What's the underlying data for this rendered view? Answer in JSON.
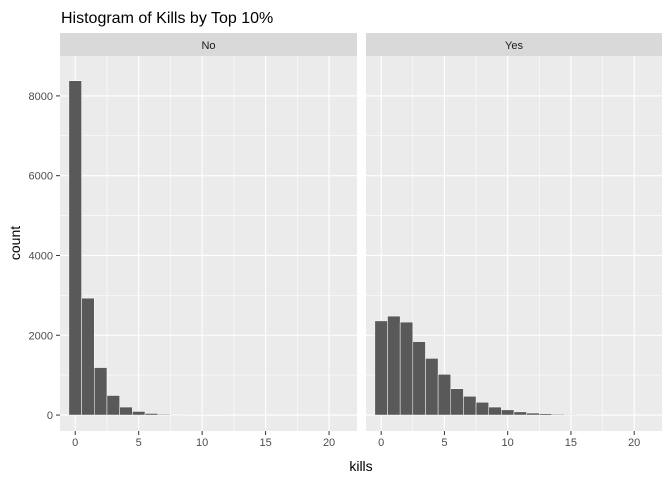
{
  "chart_data": {
    "type": "bar",
    "title": "Histogram of Kills by Top 10%",
    "xlabel": "kills",
    "ylabel": "count",
    "x_ticks": [
      0,
      5,
      10,
      15,
      20
    ],
    "y_ticks": [
      0,
      2000,
      4000,
      6000,
      8000
    ],
    "xlim": [
      -1.2,
      22.2
    ],
    "ylim": [
      -400,
      9000
    ],
    "grid": true,
    "bins": [
      0,
      1,
      2,
      3,
      4,
      5,
      6,
      7,
      8,
      9,
      10,
      11,
      12,
      13,
      14,
      15,
      16,
      17,
      18,
      19,
      20,
      21
    ],
    "panels": [
      {
        "name": "No",
        "values": [
          8380,
          2930,
          1190,
          490,
          200,
          90,
          40,
          20,
          10,
          5,
          3,
          2,
          0,
          0,
          0,
          0,
          0,
          0,
          0,
          0,
          0,
          0
        ]
      },
      {
        "name": "Yes",
        "values": [
          2360,
          2480,
          2330,
          1840,
          1420,
          1020,
          660,
          470,
          320,
          200,
          130,
          80,
          50,
          35,
          20,
          15,
          10,
          5,
          0,
          0,
          0,
          0
        ]
      }
    ],
    "colors": {
      "bar_fill": "#595959",
      "bar_stroke": "#ffffff",
      "panel_bg": "#ebebeb",
      "strip_bg": "#d9d9d9",
      "grid": "#ffffff"
    }
  }
}
